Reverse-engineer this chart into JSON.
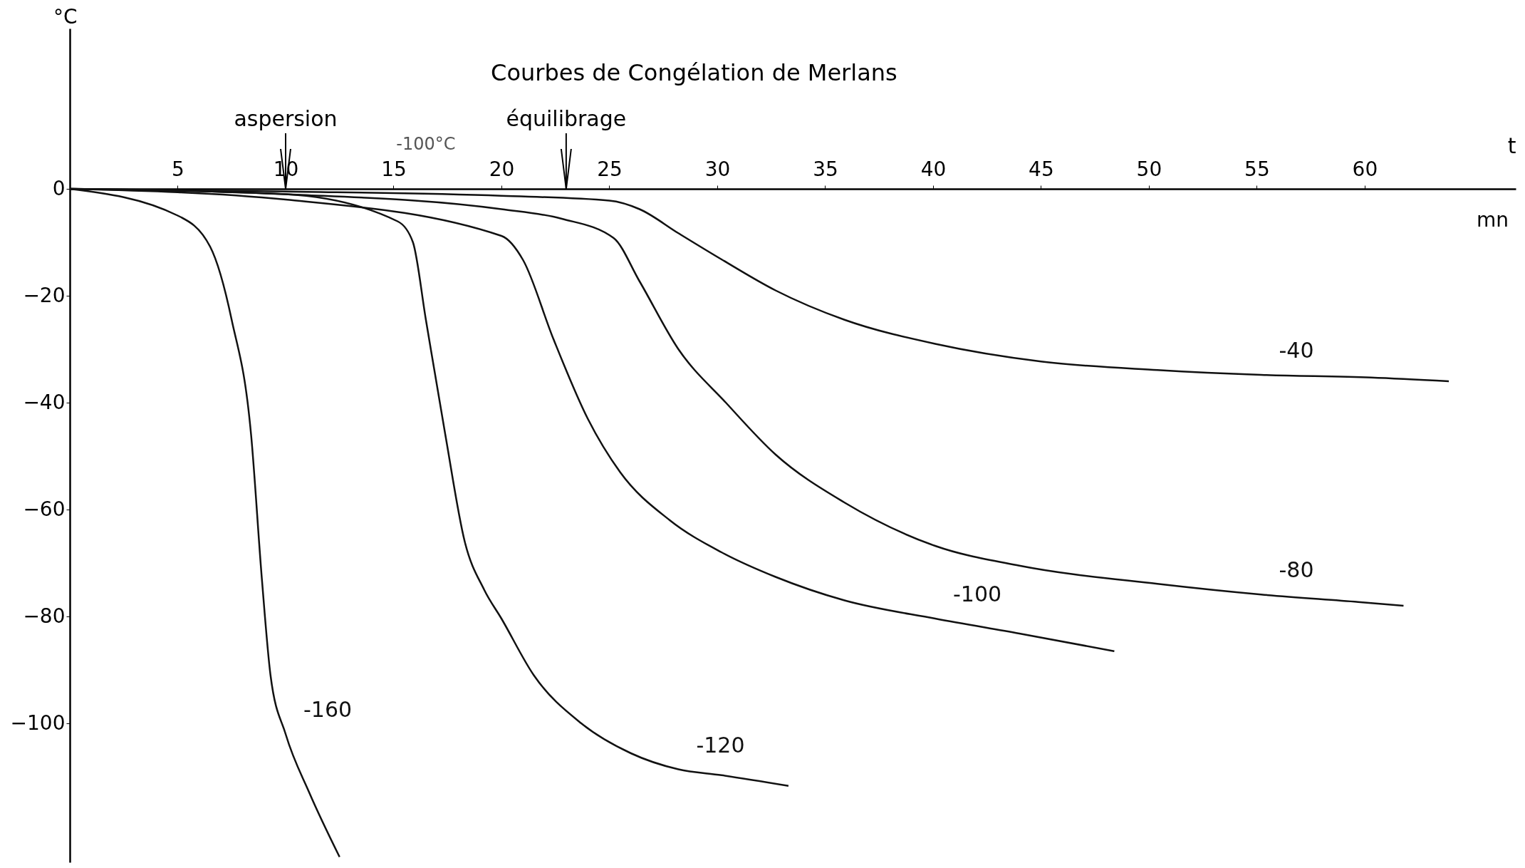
{
  "chart_data": {
    "type": "line",
    "title": "Courbes de Congélation de Merlans",
    "xlabel": "t",
    "ylabel": "°C",
    "xlim": [
      0,
      67
    ],
    "ylim": [
      -126,
      30
    ],
    "xticks": [
      5,
      10,
      15,
      20,
      25,
      30,
      35,
      40,
      45,
      50,
      55,
      60
    ],
    "yticks": [
      0,
      -20,
      -40,
      -60,
      -80,
      -100
    ],
    "ref_lines": [
      {
        "axis": "x",
        "value": 10,
        "label": "aspersion"
      },
      {
        "axis": "x",
        "value": 23,
        "label": "équilibrage"
      }
    ],
    "annotations": [
      "-100°C",
      "mn"
    ],
    "series": [
      {
        "name": "-40",
        "color": "#111111",
        "x": [
          0,
          10,
          20,
          25,
          26.4,
          28.2,
          30.2,
          32.7,
          35.9,
          40.1,
          45,
          50.4,
          55.2,
          60.3,
          63.9
        ],
        "values": [
          0,
          -0.5,
          -1.3,
          -2.2,
          -3.8,
          -8.3,
          -13.2,
          -19,
          -24.5,
          -29,
          -32.3,
          -33.9,
          -34.8,
          -35.3,
          -36
        ]
      },
      {
        "name": "-80",
        "color": "#111111",
        "x": [
          0,
          10,
          20,
          22.8,
          25.2,
          26.4,
          28.2,
          30.4,
          32.7,
          35.9,
          40.1,
          44,
          50.4,
          55.2,
          59.7,
          61.8
        ],
        "values": [
          0,
          -1,
          -3.8,
          -5.6,
          -9.2,
          -17.3,
          -30,
          -40,
          -49.7,
          -58.7,
          -66.8,
          -70.5,
          -73.9,
          -75.9,
          -77.3,
          -78
        ]
      },
      {
        "name": "-100",
        "color": "#111111",
        "x": [
          0,
          10,
          20,
          21,
          22.4,
          24,
          25.5,
          27.8,
          30.2,
          32.7,
          35.9,
          40.1,
          44,
          48.4
        ],
        "values": [
          0,
          -2,
          -8.8,
          -13.3,
          -28,
          -43,
          -53,
          -62,
          -68,
          -72.6,
          -77,
          -80.4,
          -83.2,
          -86.5
        ]
      },
      {
        "name": "-120",
        "color": "#111111",
        "x": [
          0,
          10,
          15.2,
          15.9,
          16.5,
          17.4,
          18.3,
          19.2,
          20,
          21.5,
          23.7,
          26,
          28.2,
          30.2,
          33.3
        ],
        "values": [
          0,
          -1,
          -6.1,
          -10,
          -24.5,
          -46,
          -66,
          -75,
          -80.4,
          -91,
          -100,
          -105.6,
          -108.6,
          -109.7,
          -111.7
        ]
      },
      {
        "name": "-160",
        "color": "#111111",
        "x": [
          0,
          5,
          6.5,
          7.5,
          8.4,
          8.9,
          9.3,
          10,
          11.1,
          12.5
        ],
        "values": [
          0,
          -5,
          -10.8,
          -24.5,
          -46,
          -73,
          -91,
          -102,
          -113,
          -125
        ]
      }
    ]
  }
}
